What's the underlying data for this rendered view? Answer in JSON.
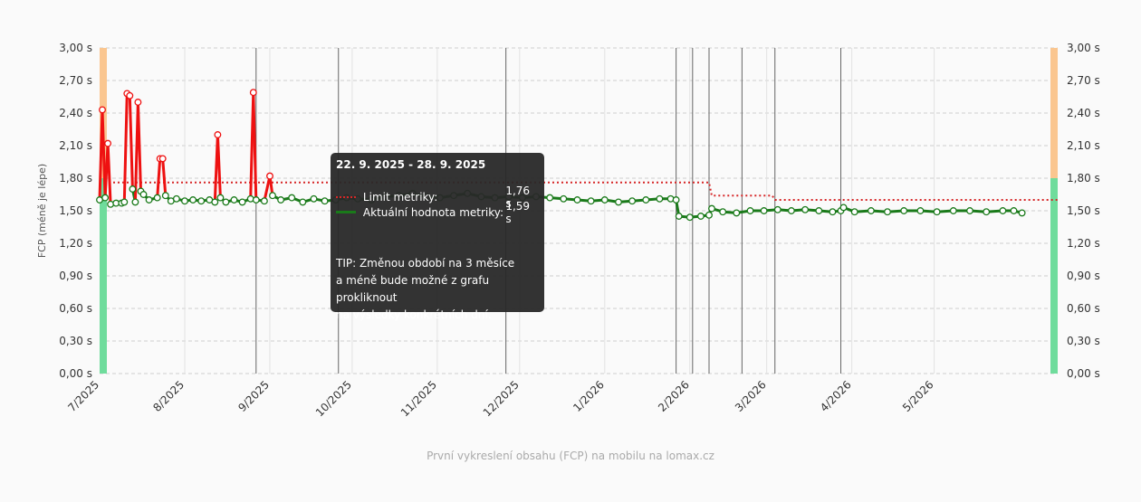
{
  "chart_data": {
    "type": "line",
    "ylabel": "FCP (méně je lépe)",
    "ylim": [
      0,
      3.0
    ],
    "y_ticks": [
      "0,00 s",
      "0,30 s",
      "0,60 s",
      "0,90 s",
      "1,20 s",
      "1,50 s",
      "1,80 s",
      "2,10 s",
      "2,40 s",
      "2,70 s",
      "3,00 s"
    ],
    "y_tick_values": [
      0,
      0.3,
      0.6,
      0.9,
      1.2,
      1.5,
      1.8,
      2.1,
      2.4,
      2.7,
      3.0
    ],
    "x_ticks": [
      "7/2025",
      "8/2025",
      "9/2025",
      "10/2025",
      "11/2025",
      "12/2025",
      "1/2026",
      "2/2026",
      "3/2026",
      "4/2026",
      "5/2026"
    ],
    "x_range": [
      "2025-07-01",
      "2026-06-15"
    ],
    "zones": [
      {
        "from": 0,
        "to": 1.8,
        "color": "#6fdc9c"
      },
      {
        "from": 1.8,
        "to": 3.0,
        "color": "#fac690"
      }
    ],
    "event_lines": [
      "2025-08-27",
      "2025-09-26",
      "2025-11-26",
      "2026-01-27",
      "2026-02-02",
      "2026-02-08",
      "2026-02-20",
      "2026-03-04",
      "2026-03-28"
    ],
    "series": [
      {
        "name": "Limit metriky",
        "color": "#d62728",
        "style": "dotted",
        "step": true,
        "points": [
          [
            "2025-07-01",
            1.76
          ],
          [
            "2026-02-08",
            1.76
          ],
          [
            "2026-02-09",
            1.64
          ],
          [
            "2026-03-03",
            1.64
          ],
          [
            "2026-03-04",
            1.6
          ],
          [
            "2026-06-15",
            1.6
          ]
        ]
      },
      {
        "name": "Aktuální hodnota metriky",
        "color": "#1a7a1a",
        "bad_color": "#ee1111",
        "bad_threshold": 1.76,
        "points": [
          [
            "2025-07-01",
            1.6
          ],
          [
            "2025-07-02",
            2.43
          ],
          [
            "2025-07-03",
            1.62
          ],
          [
            "2025-07-04",
            2.12
          ],
          [
            "2025-07-05",
            1.56
          ],
          [
            "2025-07-07",
            1.57
          ],
          [
            "2025-07-09",
            1.57
          ],
          [
            "2025-07-10",
            1.58
          ],
          [
            "2025-07-11",
            2.58
          ],
          [
            "2025-07-12",
            2.56
          ],
          [
            "2025-07-13",
            1.7
          ],
          [
            "2025-07-14",
            1.58
          ],
          [
            "2025-07-15",
            2.5
          ],
          [
            "2025-07-16",
            1.68
          ],
          [
            "2025-07-17",
            1.65
          ],
          [
            "2025-07-19",
            1.6
          ],
          [
            "2025-07-22",
            1.62
          ],
          [
            "2025-07-23",
            1.98
          ],
          [
            "2025-07-24",
            1.98
          ],
          [
            "2025-07-25",
            1.64
          ],
          [
            "2025-07-27",
            1.59
          ],
          [
            "2025-07-29",
            1.61
          ],
          [
            "2025-08-01",
            1.59
          ],
          [
            "2025-08-04",
            1.6
          ],
          [
            "2025-08-07",
            1.59
          ],
          [
            "2025-08-10",
            1.6
          ],
          [
            "2025-08-12",
            1.58
          ],
          [
            "2025-08-13",
            2.2
          ],
          [
            "2025-08-14",
            1.62
          ],
          [
            "2025-08-16",
            1.58
          ],
          [
            "2025-08-19",
            1.6
          ],
          [
            "2025-08-22",
            1.58
          ],
          [
            "2025-08-25",
            1.61
          ],
          [
            "2025-08-26",
            2.59
          ],
          [
            "2025-08-27",
            1.6
          ],
          [
            "2025-08-30",
            1.59
          ],
          [
            "2025-09-01",
            1.82
          ],
          [
            "2025-09-02",
            1.64
          ],
          [
            "2025-09-05",
            1.6
          ],
          [
            "2025-09-09",
            1.62
          ],
          [
            "2025-09-13",
            1.58
          ],
          [
            "2025-09-17",
            1.61
          ],
          [
            "2025-09-21",
            1.59
          ],
          [
            "2025-09-25",
            1.6
          ],
          [
            "2025-09-29",
            1.62
          ],
          [
            "2025-10-03",
            1.61
          ],
          [
            "2025-10-08",
            1.6
          ],
          [
            "2025-10-13",
            1.63
          ],
          [
            "2025-10-18",
            1.64
          ],
          [
            "2025-10-23",
            1.66
          ],
          [
            "2025-10-28",
            1.63
          ],
          [
            "2025-11-02",
            1.62
          ],
          [
            "2025-11-07",
            1.64
          ],
          [
            "2025-11-12",
            1.66
          ],
          [
            "2025-11-17",
            1.63
          ],
          [
            "2025-11-22",
            1.62
          ],
          [
            "2025-11-27",
            1.63
          ],
          [
            "2025-12-02",
            1.62
          ],
          [
            "2025-12-07",
            1.63
          ],
          [
            "2025-12-12",
            1.62
          ],
          [
            "2025-12-17",
            1.61
          ],
          [
            "2025-12-22",
            1.6
          ],
          [
            "2025-12-27",
            1.59
          ],
          [
            "2026-01-01",
            1.6
          ],
          [
            "2026-01-06",
            1.58
          ],
          [
            "2026-01-11",
            1.59
          ],
          [
            "2026-01-16",
            1.6
          ],
          [
            "2026-01-21",
            1.61
          ],
          [
            "2026-01-25",
            1.61
          ],
          [
            "2026-01-27",
            1.6
          ],
          [
            "2026-01-28",
            1.45
          ],
          [
            "2026-02-01",
            1.44
          ],
          [
            "2026-02-05",
            1.45
          ],
          [
            "2026-02-08",
            1.46
          ],
          [
            "2026-02-09",
            1.52
          ],
          [
            "2026-02-13",
            1.49
          ],
          [
            "2026-02-18",
            1.48
          ],
          [
            "2026-02-23",
            1.5
          ],
          [
            "2026-02-28",
            1.5
          ],
          [
            "2026-03-05",
            1.51
          ],
          [
            "2026-03-10",
            1.5
          ],
          [
            "2026-03-15",
            1.51
          ],
          [
            "2026-03-20",
            1.5
          ],
          [
            "2026-03-25",
            1.49
          ],
          [
            "2026-03-28",
            1.5
          ],
          [
            "2026-03-29",
            1.53
          ],
          [
            "2026-04-02",
            1.49
          ],
          [
            "2026-04-08",
            1.5
          ],
          [
            "2026-04-14",
            1.49
          ],
          [
            "2026-04-20",
            1.5
          ],
          [
            "2026-04-26",
            1.5
          ],
          [
            "2026-05-02",
            1.49
          ],
          [
            "2026-05-08",
            1.5
          ],
          [
            "2026-05-14",
            1.5
          ],
          [
            "2026-05-20",
            1.49
          ],
          [
            "2026-05-26",
            1.5
          ],
          [
            "2026-05-30",
            1.5
          ],
          [
            "2026-06-02",
            1.48
          ]
        ]
      }
    ],
    "tooltip": {
      "title": "22. 9. 2025 - 28. 9. 2025",
      "rows": [
        {
          "name": "Limit metriky:",
          "value": "1,76 s",
          "kind": "limit"
        },
        {
          "name": "Aktuální hodnota metriky:",
          "value": "1,59 s",
          "kind": "actual"
        }
      ],
      "tip_lines": [
        "TIP: Změnou období na 3 měsíce",
        "a méně bude možné z grafu prokliknout",
        "na výsledky konkrétních dní."
      ]
    },
    "footer": "První vykreslení obsahu (FCP) na mobilu na lomax.cz",
    "grid": true
  }
}
